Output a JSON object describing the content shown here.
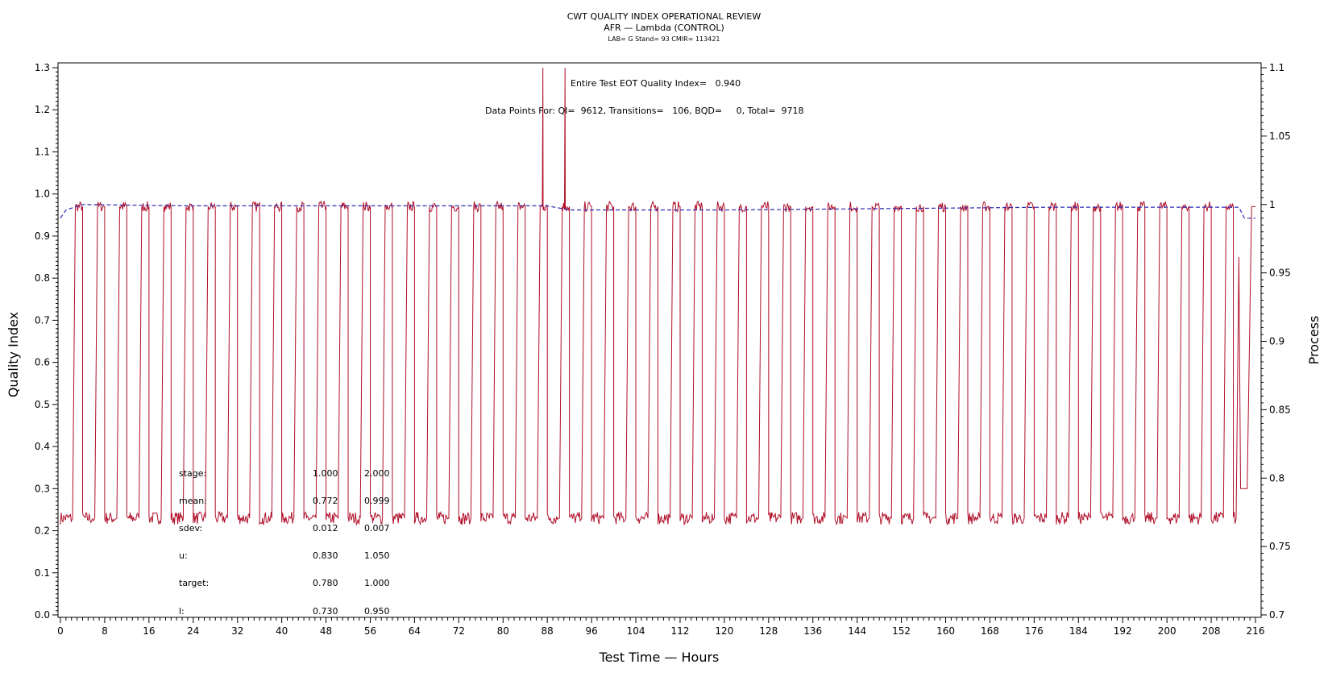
{
  "colors": {
    "quality_index": "#b0102a",
    "process": "#2b2bb4",
    "axis": "#000000",
    "background": "#ffffff"
  },
  "chart_data": {
    "type": "line",
    "title": "CWT QUALITY INDEX OPERATIONAL REVIEW",
    "subtitle": "AFR — Lambda (CONTROL)",
    "subtitle2": "LAB= G Stand= 93 CMIR= 113421",
    "xlabel": "Test Time — Hours",
    "ylabel": "Quality Index",
    "y2label": "Process",
    "xlim": [
      0,
      216
    ],
    "ylim": [
      0.0,
      1.3
    ],
    "y2lim": [
      0.7,
      1.1
    ],
    "xticks": [
      "0",
      "8",
      "16",
      "24",
      "32",
      "40",
      "48",
      "56",
      "64",
      "72",
      "80",
      "88",
      "96",
      "104",
      "112",
      "120",
      "128",
      "136",
      "144",
      "152",
      "160",
      "168",
      "176",
      "184",
      "192",
      "200",
      "208",
      "216"
    ],
    "yticks": [
      "0.0",
      "0.1",
      "0.2",
      "0.3",
      "0.4",
      "0.5",
      "0.6",
      "0.7",
      "0.8",
      "0.9",
      "1.0",
      "1.1",
      "1.2",
      "1.3"
    ],
    "y2ticks": [
      "0.7",
      "0.75",
      "0.8",
      "0.85",
      "0.9",
      "0.95",
      "1",
      "1.05",
      "1.1"
    ],
    "cycle_hours": 4,
    "cycle_count": 54,
    "series": [
      {
        "axis": "left",
        "style": "solid",
        "approximate": "square wave alternating between a low stage (~0.23) and a high stage (~0.97) every 2 hours, with spikes near 87 h and 91 h",
        "low_stage": 0.23,
        "high_stage": 0.97,
        "points": [
          [
            0,
            0.24
          ],
          [
            2.2,
            0.24
          ],
          [
            2.7,
            0.97
          ],
          [
            4.2,
            0.97
          ],
          [
            4.7,
            0.23
          ],
          [
            6.2,
            0.23
          ],
          [
            6.7,
            0.97
          ],
          [
            8.2,
            0.97
          ],
          [
            87,
            0.97
          ],
          [
            87.2,
            1.3
          ],
          [
            87.4,
            0.97
          ],
          [
            91,
            0.97
          ],
          [
            91.2,
            1.3
          ],
          [
            91.4,
            0.97
          ],
          [
            212.5,
            0.23
          ],
          [
            213,
            0.85
          ],
          [
            213.3,
            0.3
          ],
          [
            214.5,
            0.3
          ],
          [
            215.3,
            0.97
          ],
          [
            216,
            0.97
          ]
        ]
      },
      {
        "axis": "right",
        "style": "dashed",
        "points": [
          [
            0,
            0.99
          ],
          [
            1,
            0.996
          ],
          [
            4,
            1.0
          ],
          [
            24,
            0.999
          ],
          [
            48,
            0.999
          ],
          [
            88,
            0.999
          ],
          [
            92,
            0.996
          ],
          [
            120,
            0.996
          ],
          [
            150,
            0.997
          ],
          [
            180,
            0.998
          ],
          [
            213,
            0.998
          ],
          [
            214,
            0.99
          ],
          [
            216,
            0.99
          ]
        ]
      }
    ],
    "annotations": [
      "Entire Test EOT Quality Index=   0.940",
      "Data Points For: QI=  9612, Transitions=   106, BQD=     0, Total=  9718"
    ],
    "stats_table": {
      "rows": [
        {
          "label": "stage:",
          "values": [
            "1.000",
            "2.000"
          ]
        },
        {
          "label": "mean:",
          "values": [
            "0.772",
            "0.999"
          ]
        },
        {
          "label": "sdev:",
          "values": [
            "0.012",
            "0.007"
          ]
        },
        {
          "label": "u:",
          "values": [
            "0.830",
            "1.050"
          ]
        },
        {
          "label": "target:",
          "values": [
            "0.780",
            "1.000"
          ]
        },
        {
          "label": "l:",
          "values": [
            "0.730",
            "0.950"
          ]
        }
      ]
    }
  }
}
